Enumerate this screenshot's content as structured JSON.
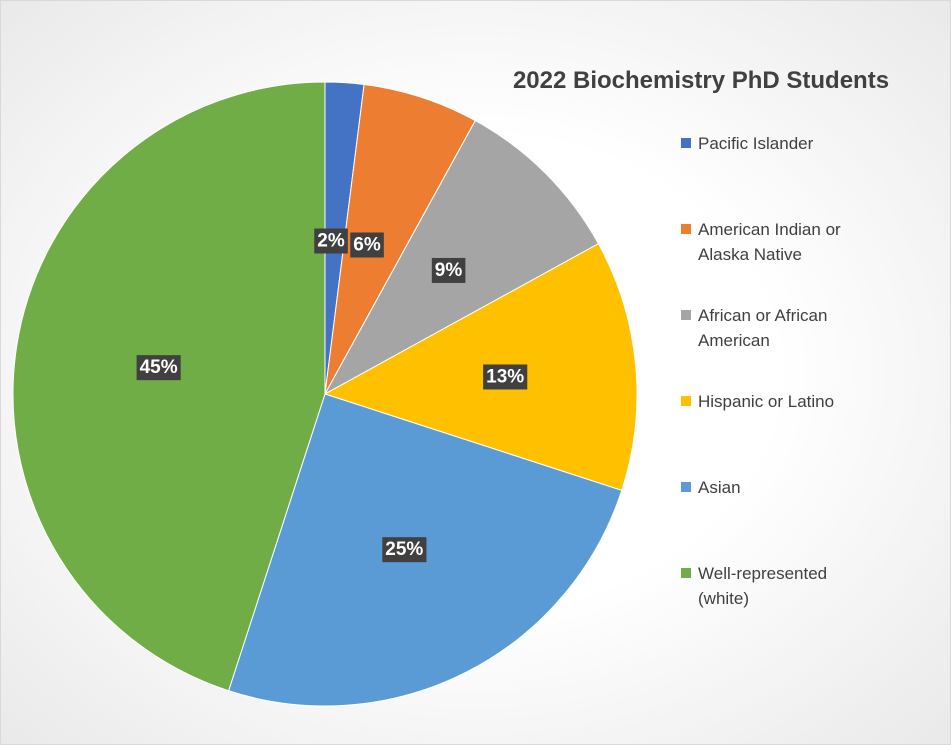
{
  "chart_data": {
    "type": "pie",
    "title": "2022 Biochemistry PhD Students",
    "legend_position": "right",
    "categories": [
      "Pacific Islander",
      "American Indian or Alaska Native",
      "African or African American",
      "Hispanic or Latino",
      "Asian",
      "Well-represented (white)"
    ],
    "values": [
      2,
      6,
      9,
      13,
      25,
      45
    ],
    "labels": [
      "2%",
      "6%",
      "9%",
      "13%",
      "25%",
      "45%"
    ],
    "colors": [
      "#4472C4",
      "#ED7D31",
      "#A5A5A5",
      "#FFC000",
      "#5B9BD5",
      "#70AD47"
    ],
    "legend_lines": [
      [
        "Pacific Islander"
      ],
      [
        "American Indian or",
        "Alaska Native"
      ],
      [
        "African or African",
        "American"
      ],
      [
        "Hispanic or Latino"
      ],
      [
        "Asian"
      ],
      [
        "Well-represented",
        "(white)"
      ]
    ]
  }
}
